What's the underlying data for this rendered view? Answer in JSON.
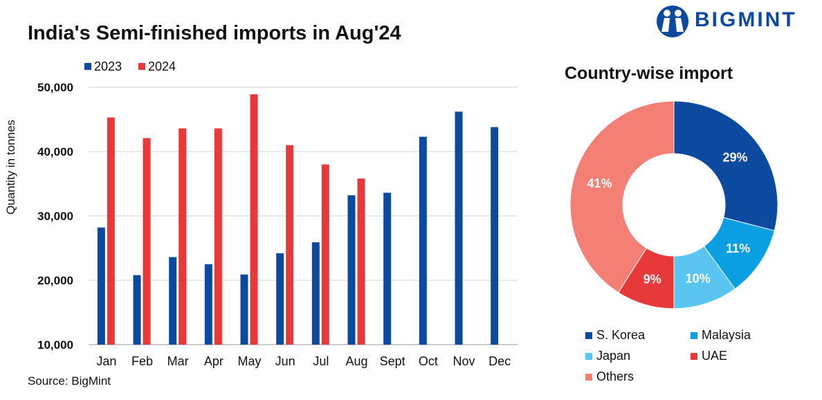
{
  "header": {
    "title": "India's Semi-finished imports in Aug'24",
    "brand": "BIGMINT",
    "brand_color": "#0b4a9e"
  },
  "source": "Source: BigMint",
  "chart_data": [
    {
      "type": "bar",
      "ylabel": "Quantity in tonnes",
      "xlabel": "",
      "ylim": [
        10000,
        50000
      ],
      "y_ticks": [
        "10,000",
        "20,000",
        "30,000",
        "40,000",
        "50,000"
      ],
      "grid": true,
      "legend_position": "top-left",
      "categories": [
        "Jan",
        "Feb",
        "Mar",
        "Apr",
        "May",
        "Jun",
        "Jul",
        "Aug",
        "Sept",
        "Oct",
        "Nov",
        "Dec"
      ],
      "series": [
        {
          "name": "2023",
          "color": "#0b4a9e",
          "values": [
            28200,
            20800,
            23600,
            22500,
            20900,
            24200,
            25900,
            33200,
            33600,
            42300,
            46200,
            43800
          ]
        },
        {
          "name": "2024",
          "color": "#e8393a",
          "values": [
            45300,
            42100,
            43600,
            43600,
            48900,
            41000,
            38000,
            35800,
            null,
            null,
            null,
            null
          ]
        }
      ]
    },
    {
      "type": "pie",
      "title": "Country-wise import",
      "donut": true,
      "slices": [
        {
          "label": "S. Korea",
          "value": 29,
          "display": "29%",
          "color": "#0b4a9e"
        },
        {
          "label": "Malaysia",
          "value": 11,
          "display": "11%",
          "color": "#0a9fe0"
        },
        {
          "label": "Japan",
          "value": 10,
          "display": "10%",
          "color": "#5bc5f2"
        },
        {
          "label": "UAE",
          "value": 9,
          "display": "9%",
          "color": "#e8393a"
        },
        {
          "label": "Others",
          "value": 41,
          "display": "41%",
          "color": "#f47f74"
        }
      ]
    }
  ]
}
